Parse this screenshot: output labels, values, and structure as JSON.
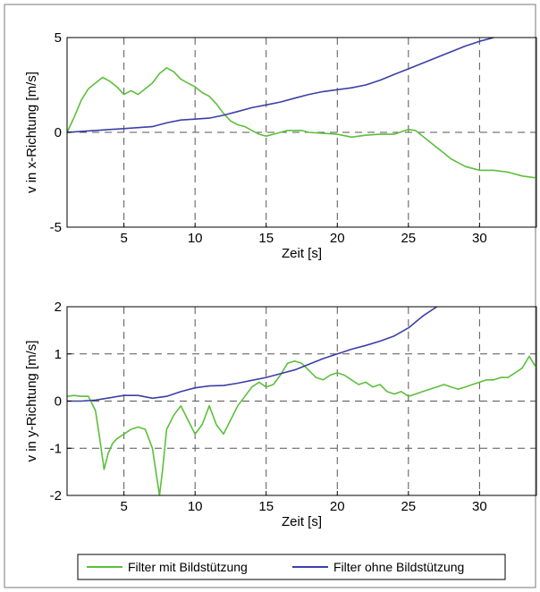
{
  "colors": {
    "green": "#5cbf3a",
    "blue": "#3b3fa6",
    "grid": "#555555",
    "frame": "#000000"
  },
  "legend": {
    "items": [
      {
        "label": "Filter mit Bildstützung",
        "color": "#5cbf3a"
      },
      {
        "label": "Filter ohne Bildstützung",
        "color": "#3b3fa6"
      }
    ]
  },
  "chart_data": [
    {
      "type": "line",
      "xlabel": "Zeit [s]",
      "ylabel": "v in x-Richtung [m/s]",
      "xlim": [
        1,
        34
      ],
      "ylim": [
        -5,
        5
      ],
      "xticks": [
        5,
        10,
        15,
        20,
        25,
        30
      ],
      "yticks": [
        -5,
        0,
        5
      ],
      "grid": true,
      "series": [
        {
          "name": "Filter mit Bildstützung",
          "color": "#5cbf3a",
          "x": [
            1.0,
            1.5,
            2.0,
            2.5,
            3.0,
            3.5,
            4.0,
            4.5,
            5.0,
            5.5,
            6.0,
            6.5,
            7.0,
            7.5,
            8.0,
            8.5,
            9.0,
            9.5,
            10.0,
            10.5,
            11.0,
            11.5,
            12.0,
            12.5,
            13.0,
            13.5,
            14.0,
            14.5,
            15.0,
            15.5,
            16.0,
            16.5,
            17.0,
            17.5,
            18.0,
            19.0,
            20.0,
            21.0,
            22.0,
            23.0,
            24.0,
            25.0,
            25.5,
            26.0,
            26.5,
            27.0,
            27.5,
            28.0,
            28.5,
            29.0,
            29.5,
            30.0,
            31.0,
            32.0,
            33.0,
            34.0
          ],
          "y": [
            0.0,
            0.8,
            1.7,
            2.3,
            2.6,
            2.9,
            2.7,
            2.4,
            2.0,
            2.2,
            2.0,
            2.3,
            2.6,
            3.1,
            3.4,
            3.2,
            2.8,
            2.6,
            2.4,
            2.1,
            1.9,
            1.5,
            1.0,
            0.6,
            0.4,
            0.3,
            0.1,
            -0.1,
            -0.2,
            -0.1,
            0.0,
            0.1,
            0.1,
            0.1,
            0.0,
            -0.05,
            -0.1,
            -0.25,
            -0.15,
            -0.1,
            -0.1,
            0.15,
            0.1,
            -0.2,
            -0.5,
            -0.8,
            -1.1,
            -1.4,
            -1.6,
            -1.8,
            -1.9,
            -2.0,
            -2.0,
            -2.1,
            -2.3,
            -2.4
          ]
        },
        {
          "name": "Filter ohne Bildstützung",
          "color": "#3b3fa6",
          "x": [
            1.0,
            2.0,
            3.0,
            4.0,
            5.0,
            6.0,
            7.0,
            8.0,
            9.0,
            10.0,
            11.0,
            12.0,
            13.0,
            14.0,
            15.0,
            16.0,
            17.0,
            18.0,
            19.0,
            20.0,
            21.0,
            22.0,
            23.0,
            24.0,
            25.0,
            26.0,
            27.0,
            28.0,
            29.0,
            30.0,
            31.0
          ],
          "y": [
            0.0,
            0.05,
            0.1,
            0.15,
            0.2,
            0.25,
            0.3,
            0.5,
            0.65,
            0.7,
            0.75,
            0.9,
            1.1,
            1.3,
            1.45,
            1.6,
            1.8,
            2.0,
            2.15,
            2.25,
            2.35,
            2.5,
            2.75,
            3.05,
            3.35,
            3.65,
            3.95,
            4.25,
            4.55,
            4.8,
            5.0
          ]
        }
      ]
    },
    {
      "type": "line",
      "xlabel": "Zeit [s]",
      "ylabel": "v in y-Richtung [m/s]",
      "xlim": [
        1,
        34
      ],
      "ylim": [
        -2,
        2
      ],
      "xticks": [
        5,
        10,
        15,
        20,
        25,
        30
      ],
      "yticks": [
        -2,
        -1,
        0,
        1,
        2
      ],
      "grid": true,
      "series": [
        {
          "name": "Filter mit Bildstützung",
          "color": "#5cbf3a",
          "x": [
            1.0,
            1.5,
            2.0,
            2.5,
            3.0,
            3.3,
            3.6,
            3.9,
            4.2,
            4.5,
            5.0,
            5.5,
            6.0,
            6.5,
            7.0,
            7.3,
            7.5,
            7.7,
            8.0,
            8.5,
            9.0,
            9.5,
            10.0,
            10.5,
            11.0,
            11.5,
            12.0,
            12.5,
            13.0,
            13.5,
            14.0,
            14.5,
            15.0,
            15.5,
            16.0,
            16.5,
            17.0,
            17.5,
            18.0,
            18.5,
            19.0,
            19.5,
            20.0,
            20.5,
            21.0,
            21.5,
            22.0,
            22.5,
            23.0,
            23.5,
            24.0,
            24.5,
            25.0,
            25.5,
            26.0,
            26.5,
            27.0,
            27.5,
            28.0,
            28.5,
            29.0,
            29.5,
            30.0,
            30.5,
            31.0,
            31.5,
            32.0,
            32.5,
            33.0,
            33.5,
            34.0
          ],
          "y": [
            0.1,
            0.12,
            0.1,
            0.1,
            -0.2,
            -0.8,
            -1.45,
            -1.1,
            -0.9,
            -0.8,
            -0.7,
            -0.6,
            -0.55,
            -0.6,
            -1.0,
            -1.6,
            -2.0,
            -1.5,
            -0.6,
            -0.3,
            -0.1,
            -0.4,
            -0.7,
            -0.5,
            -0.1,
            -0.5,
            -0.7,
            -0.4,
            -0.1,
            0.1,
            0.3,
            0.4,
            0.3,
            0.35,
            0.55,
            0.8,
            0.85,
            0.8,
            0.65,
            0.5,
            0.45,
            0.55,
            0.6,
            0.55,
            0.45,
            0.35,
            0.4,
            0.3,
            0.35,
            0.2,
            0.15,
            0.2,
            0.1,
            0.15,
            0.2,
            0.25,
            0.3,
            0.35,
            0.3,
            0.25,
            0.3,
            0.35,
            0.4,
            0.45,
            0.45,
            0.5,
            0.5,
            0.6,
            0.7,
            0.95,
            0.7
          ]
        },
        {
          "name": "Filter ohne Bildstützung",
          "color": "#3b3fa6",
          "x": [
            1.0,
            2.0,
            3.0,
            4.0,
            5.0,
            6.0,
            7.0,
            8.0,
            9.0,
            10.0,
            11.0,
            12.0,
            13.0,
            14.0,
            15.0,
            16.0,
            17.0,
            18.0,
            19.0,
            20.0,
            21.0,
            22.0,
            23.0,
            24.0,
            25.0,
            26.0,
            27.0
          ],
          "y": [
            0.0,
            0.0,
            0.02,
            0.07,
            0.12,
            0.12,
            0.06,
            0.1,
            0.2,
            0.28,
            0.32,
            0.33,
            0.38,
            0.44,
            0.5,
            0.58,
            0.66,
            0.78,
            0.9,
            1.0,
            1.1,
            1.18,
            1.27,
            1.38,
            1.55,
            1.8,
            2.0
          ]
        }
      ]
    }
  ]
}
